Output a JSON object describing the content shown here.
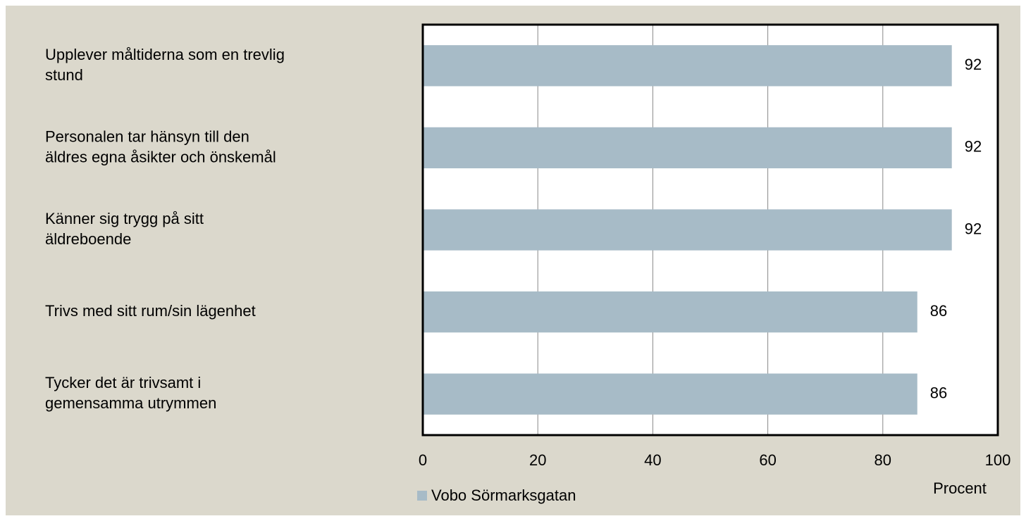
{
  "chart_data": {
    "type": "bar",
    "orientation": "horizontal",
    "categories": [
      "Upplever måltiderna som en trevlig\nstund",
      "Personalen tar hänsyn till den\näldres egna åsikter och önskemål",
      "Känner sig trygg på sitt\näldreboende",
      "Trivs med sitt rum/sin lägenhet",
      "Tycker det är trivsamt i\ngemensamma utrymmen"
    ],
    "series": [
      {
        "name": "Vobo Sörmarksgatan",
        "color": "#a7bbc7",
        "values": [
          92,
          92,
          92,
          86,
          86
        ]
      }
    ],
    "xlim": [
      0,
      100
    ],
    "xticks": [
      0,
      20,
      40,
      60,
      80,
      100
    ],
    "xlabel": "Procent",
    "grid": true,
    "legend": "bottom"
  }
}
